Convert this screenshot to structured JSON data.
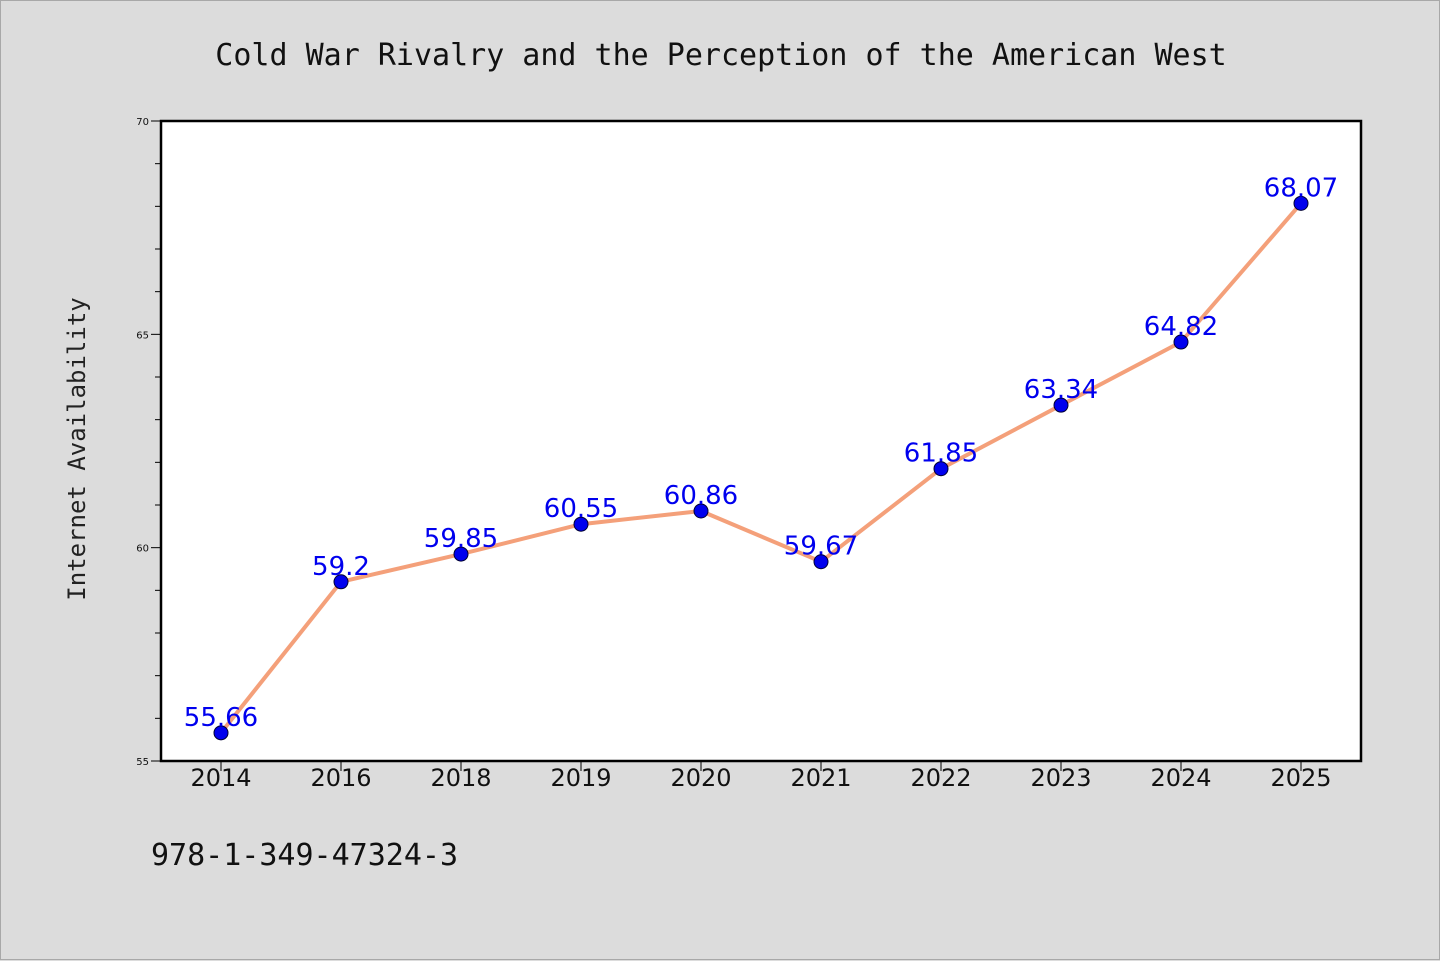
{
  "chart_data": {
    "type": "line",
    "title": "Cold War Rivalry and the Perception of the American West",
    "xlabel": "",
    "ylabel": "Internet Availability",
    "categories": [
      "2014",
      "2016",
      "2018",
      "2019",
      "2020",
      "2021",
      "2022",
      "2023",
      "2024",
      "2025"
    ],
    "series": [
      {
        "values": [
          55.66,
          59.2,
          59.85,
          60.55,
          60.86,
          59.67,
          61.85,
          63.34,
          64.82,
          68.07
        ]
      }
    ],
    "data_labels": [
      "55.66",
      "59.2",
      "59.85",
      "60.55",
      "60.86",
      "59.67",
      "61.85",
      "63.34",
      "64.82",
      "68.07"
    ],
    "ylim": [
      55,
      70
    ],
    "yticks": [
      "55",
      "60",
      "65",
      "70"
    ],
    "grid": false,
    "legend": "none",
    "colors": {
      "line": "#f4a07a",
      "marker": "#0000ee",
      "data_label": "#0000ee",
      "background": "#dcdcdc",
      "plot_background": "#ffffff"
    }
  },
  "footer": {
    "isbn": "978-1-349-47324-3"
  }
}
